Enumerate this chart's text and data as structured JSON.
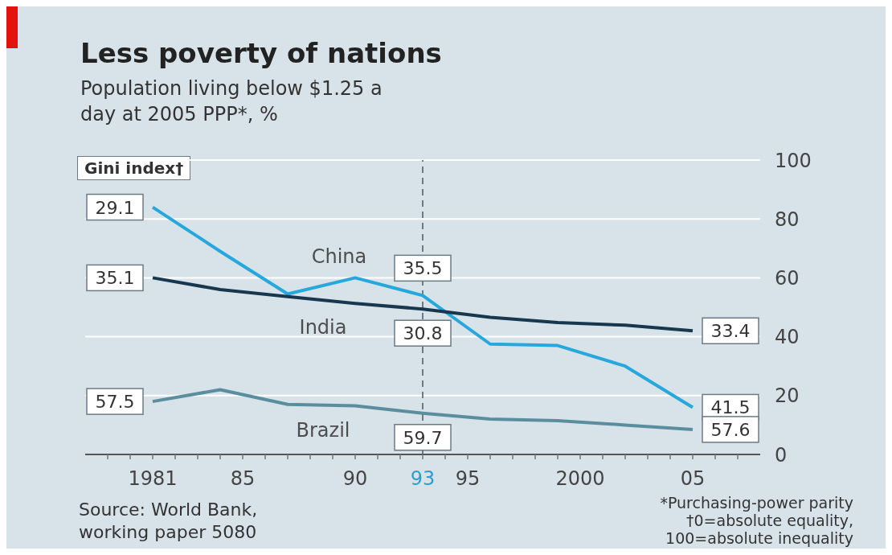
{
  "chart_data": {
    "type": "line",
    "title": "Less poverty of nations",
    "subtitle": "Population living below $1.25 a day at 2005 PPP*, %",
    "x": [
      1981,
      1984,
      1987,
      1990,
      1993,
      1996,
      1999,
      2002,
      2005
    ],
    "series": [
      {
        "name": "China",
        "color": "#27a8dc",
        "values": [
          84,
          69,
          54.5,
          60,
          54,
          37.5,
          37,
          30,
          16
        ]
      },
      {
        "name": "India",
        "color": "#17374f",
        "values": [
          60,
          56,
          53.6,
          51.3,
          49.4,
          46.6,
          44.8,
          43.9,
          42
        ]
      },
      {
        "name": "Brazil",
        "color": "#5a8e9e",
        "values": [
          18,
          22,
          17,
          16.5,
          14,
          12,
          11.5,
          10,
          8.5
        ]
      }
    ],
    "xlim": [
      1978,
      2008
    ],
    "xticks": [
      {
        "value": 1979,
        "label": null
      },
      {
        "value": 1980,
        "label": null
      },
      {
        "value": 1981,
        "label": "1981"
      },
      {
        "value": 1982,
        "label": null
      },
      {
        "value": 1983,
        "label": null
      },
      {
        "value": 1984,
        "label": null
      },
      {
        "value": 1985,
        "label": "85"
      },
      {
        "value": 1986,
        "label": null
      },
      {
        "value": 1987,
        "label": null
      },
      {
        "value": 1988,
        "label": null
      },
      {
        "value": 1989,
        "label": null
      },
      {
        "value": 1990,
        "label": "90"
      },
      {
        "value": 1991,
        "label": null
      },
      {
        "value": 1992,
        "label": null
      },
      {
        "value": 1993,
        "label": "93"
      },
      {
        "value": 1994,
        "label": null
      },
      {
        "value": 1995,
        "label": "95"
      },
      {
        "value": 1996,
        "label": null
      },
      {
        "value": 1997,
        "label": null
      },
      {
        "value": 1998,
        "label": null
      },
      {
        "value": 1999,
        "label": null
      },
      {
        "value": 2000,
        "label": "2000"
      },
      {
        "value": 2001,
        "label": null
      },
      {
        "value": 2002,
        "label": null
      },
      {
        "value": 2003,
        "label": null
      },
      {
        "value": 2004,
        "label": null
      },
      {
        "value": 2005,
        "label": "05"
      },
      {
        "value": 2006,
        "label": null
      },
      {
        "value": 2007,
        "label": null
      }
    ],
    "ylim": [
      0,
      100
    ],
    "yticks": [
      0,
      20,
      40,
      60,
      80,
      100
    ],
    "grid": "y",
    "legend": false,
    "marker": "none",
    "line_style": "solid",
    "ref_lines": [
      {
        "axis": "x",
        "value": 1993,
        "color": "#4a5763",
        "line_style": "dashed"
      }
    ],
    "annotations": [
      "Gini index†",
      {
        "text": "29.1",
        "x": 1981,
        "y": 84
      },
      {
        "text": "35.1",
        "x": 1981,
        "y": 60
      },
      {
        "text": "57.5",
        "x": 1981,
        "y": 18
      },
      {
        "text": "35.5",
        "x": 1993,
        "y": 54
      },
      {
        "text": "30.8",
        "x": 1993,
        "y": 49.4
      },
      {
        "text": "59.7",
        "x": 1993,
        "y": 14
      },
      {
        "text": "33.4",
        "x": 2005,
        "y": 42
      },
      {
        "text": "41.5",
        "x": 2005,
        "y": 16
      },
      {
        "text": "57.6",
        "x": 2005,
        "y": 8.5
      },
      "Source: World Bank, working paper 5080",
      "*Purchasing-power parity",
      "†0=absolute equality, 100=absolute inequality"
    ]
  }
}
